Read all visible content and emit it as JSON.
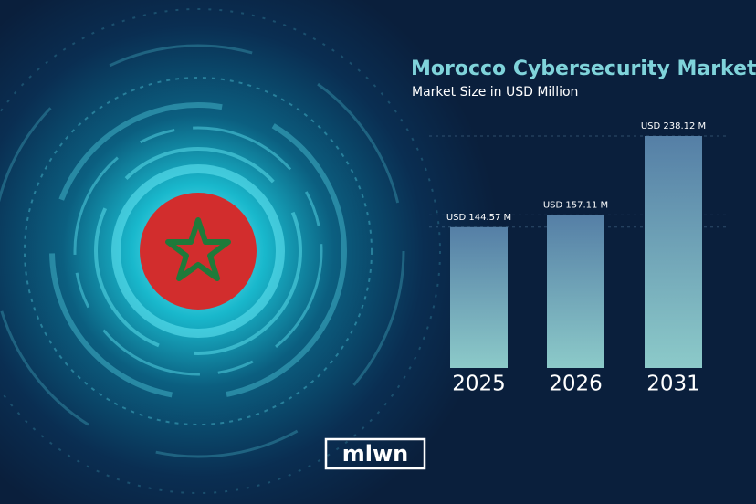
{
  "chart_data": {
    "type": "bar",
    "title": "Morocco Cybersecurity Market",
    "subtitle": "Market Size in USD Million",
    "categories": [
      "2025",
      "2026",
      "2031"
    ],
    "values": [
      144.57,
      157.11,
      238.12
    ],
    "value_labels": [
      "USD 144.57 M",
      "USD 157.11 M",
      "USD 238.12 M"
    ]
  },
  "logo": "mlwn"
}
